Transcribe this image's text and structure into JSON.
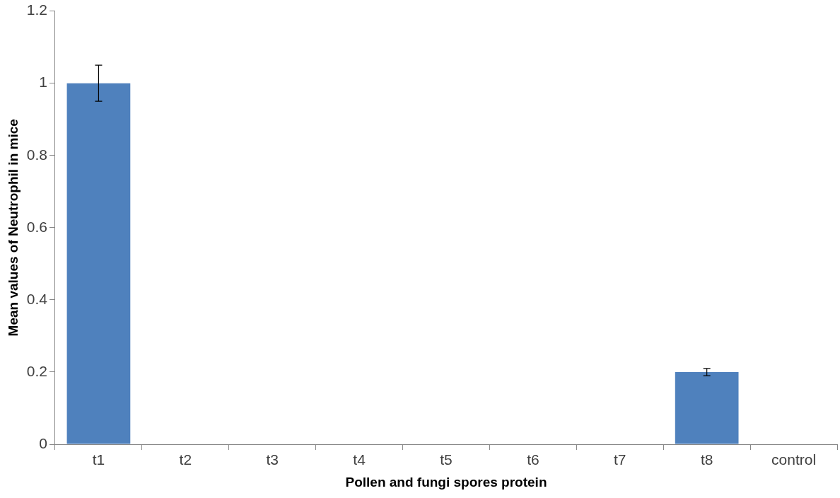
{
  "chart_data": {
    "type": "bar",
    "xlabel": "Pollen and fungi spores protein",
    "ylabel": "Mean values of Neutrophil in mice",
    "categories": [
      "t1",
      "t2",
      "t3",
      "t4",
      "t5",
      "t6",
      "t7",
      "t8",
      "control"
    ],
    "values": [
      1,
      0,
      0,
      0,
      0,
      0,
      0,
      0.2,
      0
    ],
    "errors": [
      0.05,
      null,
      null,
      null,
      null,
      null,
      null,
      0.01,
      null
    ],
    "color": "#4f81bd",
    "ylim": [
      0,
      1.2
    ],
    "yticks": [
      0,
      0.2,
      0.4,
      0.6,
      0.8,
      1,
      1.2
    ],
    "grid": false,
    "legend": false
  }
}
